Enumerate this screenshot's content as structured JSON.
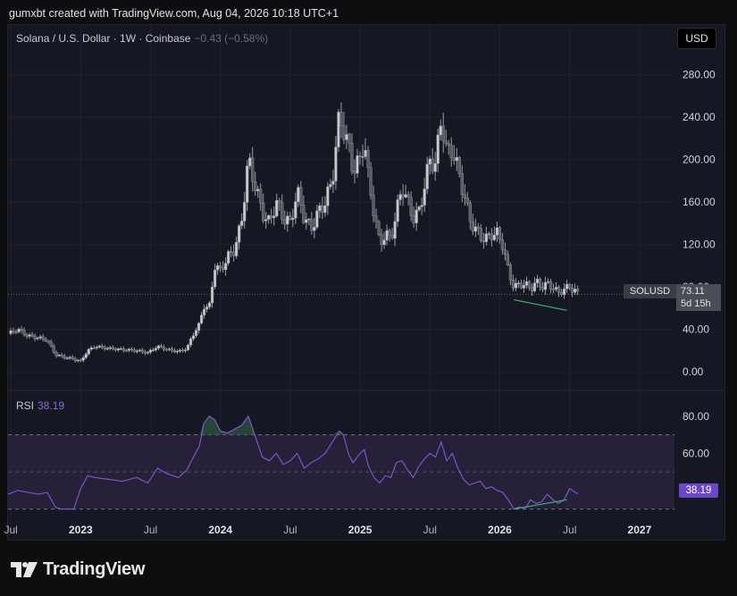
{
  "caption": "gumxbt created with TradingView.com, Aug 04, 2026 10:18 UTC+1",
  "symbol": {
    "title": "Solana / U.S. Dollar · 1W · Coinbase",
    "change": "−0.43 (−0.58%)",
    "currency": "USD",
    "ticker": "SOLUSD",
    "price": "73.11",
    "countdown": "5d 15h"
  },
  "brand": "TradingView",
  "colors": {
    "candle": "#c8c8c8",
    "candle_dark": "#5a5d66",
    "rsi_line": "#7c5bd6",
    "rsi_band": "#2a2340",
    "divergence": "#3fb37a"
  },
  "chart_data": [
    {
      "type": "candlestick",
      "title": "Solana / U.S. Dollar · 1W · Coinbase",
      "ylim": [
        -10,
        300
      ],
      "yticks": [
        "0.00",
        "40.00",
        "80.00",
        "120.00",
        "160.00",
        "200.00",
        "240.00",
        "280.00"
      ],
      "ytick_values": [
        0,
        40,
        80,
        120,
        160,
        200,
        240,
        280
      ],
      "xticks": [
        "Jul",
        "2023",
        "Jul",
        "2024",
        "Jul",
        "2025",
        "Jul",
        "2026",
        "Jul",
        "2027"
      ],
      "xtick_values": [
        2022.5,
        2023.0,
        2023.5,
        2024.0,
        2024.5,
        2025.0,
        2025.5,
        2026.0,
        2026.5,
        2027.0
      ],
      "x_range": [
        2022.48,
        2027.25
      ],
      "last_price": 73.11,
      "close_path": [
        [
          2022.48,
          36
        ],
        [
          2022.55,
          40
        ],
        [
          2022.62,
          34
        ],
        [
          2022.7,
          32
        ],
        [
          2022.76,
          30
        ],
        [
          2022.82,
          16
        ],
        [
          2022.88,
          14
        ],
        [
          2022.95,
          12
        ],
        [
          2023.0,
          10
        ],
        [
          2023.05,
          20
        ],
        [
          2023.1,
          24
        ],
        [
          2023.2,
          22
        ],
        [
          2023.3,
          21
        ],
        [
          2023.4,
          20
        ],
        [
          2023.48,
          18
        ],
        [
          2023.55,
          24
        ],
        [
          2023.62,
          21
        ],
        [
          2023.7,
          19
        ],
        [
          2023.76,
          22
        ],
        [
          2023.8,
          34
        ],
        [
          2023.85,
          45
        ],
        [
          2023.88,
          62
        ],
        [
          2023.92,
          60
        ],
        [
          2023.96,
          100
        ],
        [
          2024.0,
          95
        ],
        [
          2024.05,
          108
        ],
        [
          2024.1,
          115
        ],
        [
          2024.15,
          140
        ],
        [
          2024.2,
          200
        ],
        [
          2024.25,
          175
        ],
        [
          2024.3,
          150
        ],
        [
          2024.35,
          140
        ],
        [
          2024.4,
          160
        ],
        [
          2024.45,
          145
        ],
        [
          2024.5,
          140
        ],
        [
          2024.55,
          170
        ],
        [
          2024.6,
          145
        ],
        [
          2024.65,
          135
        ],
        [
          2024.7,
          150
        ],
        [
          2024.75,
          160
        ],
        [
          2024.8,
          180
        ],
        [
          2024.85,
          240
        ],
        [
          2024.88,
          230
        ],
        [
          2024.92,
          210
        ],
        [
          2024.95,
          190
        ],
        [
          2025.0,
          200
        ],
        [
          2025.03,
          220
        ],
        [
          2025.06,
          180
        ],
        [
          2025.1,
          150
        ],
        [
          2025.14,
          120
        ],
        [
          2025.18,
          130
        ],
        [
          2025.22,
          125
        ],
        [
          2025.26,
          150
        ],
        [
          2025.3,
          175
        ],
        [
          2025.34,
          160
        ],
        [
          2025.38,
          145
        ],
        [
          2025.42,
          150
        ],
        [
          2025.46,
          175
        ],
        [
          2025.5,
          200
        ],
        [
          2025.54,
          195
        ],
        [
          2025.58,
          240
        ],
        [
          2025.62,
          205
        ],
        [
          2025.66,
          210
        ],
        [
          2025.7,
          190
        ],
        [
          2025.74,
          170
        ],
        [
          2025.78,
          145
        ],
        [
          2025.82,
          135
        ],
        [
          2025.86,
          128
        ],
        [
          2025.9,
          125
        ],
        [
          2025.94,
          130
        ],
        [
          2025.98,
          130
        ],
        [
          2026.02,
          120
        ],
        [
          2026.06,
          95
        ],
        [
          2026.1,
          80
        ],
        [
          2026.14,
          82
        ],
        [
          2026.18,
          83
        ],
        [
          2026.22,
          78
        ],
        [
          2026.26,
          85
        ],
        [
          2026.3,
          80
        ],
        [
          2026.34,
          83
        ],
        [
          2026.38,
          80
        ],
        [
          2026.42,
          74
        ],
        [
          2026.46,
          78
        ],
        [
          2026.5,
          80
        ],
        [
          2026.54,
          76
        ],
        [
          2026.56,
          73.11
        ]
      ],
      "divergence_line": [
        [
          2026.1,
          68
        ],
        [
          2026.48,
          58
        ]
      ]
    },
    {
      "type": "line",
      "title": "RSI",
      "last_value": "38.19",
      "ylim": [
        26,
        90
      ],
      "yticks": [
        "60.00",
        "80.00"
      ],
      "ytick_values": [
        60,
        80
      ],
      "bands": [
        70,
        50,
        30
      ],
      "series": [
        {
          "name": "RSI",
          "x": [
            2022.48,
            2022.55,
            2022.62,
            2022.7,
            2022.76,
            2022.82,
            2022.86,
            2022.9,
            2022.95,
            2023.0,
            2023.05,
            2023.1,
            2023.2,
            2023.3,
            2023.4,
            2023.48,
            2023.55,
            2023.62,
            2023.7,
            2023.76,
            2023.8,
            2023.85,
            2023.88,
            2023.92,
            2023.96,
            2024.0,
            2024.05,
            2024.1,
            2024.15,
            2024.2,
            2024.25,
            2024.3,
            2024.35,
            2024.4,
            2024.45,
            2024.5,
            2024.55,
            2024.6,
            2024.65,
            2024.7,
            2024.75,
            2024.8,
            2024.85,
            2024.88,
            2024.92,
            2024.95,
            2025.0,
            2025.03,
            2025.06,
            2025.1,
            2025.14,
            2025.18,
            2025.22,
            2025.26,
            2025.3,
            2025.34,
            2025.38,
            2025.42,
            2025.46,
            2025.5,
            2025.54,
            2025.58,
            2025.62,
            2025.66,
            2025.7,
            2025.74,
            2025.78,
            2025.82,
            2025.86,
            2025.9,
            2025.94,
            2025.98,
            2026.02,
            2026.06,
            2026.1,
            2026.14,
            2026.18,
            2026.22,
            2026.26,
            2026.3,
            2026.34,
            2026.38,
            2026.42,
            2026.46,
            2026.5,
            2026.54,
            2026.56
          ],
          "values": [
            38,
            40,
            39,
            38,
            39,
            31,
            30,
            30,
            30,
            41,
            48,
            47,
            46,
            45,
            47,
            44,
            52,
            49,
            47,
            51,
            57,
            64,
            76,
            80,
            78,
            72,
            71,
            73,
            75,
            80,
            69,
            58,
            56,
            60,
            54,
            56,
            60,
            52,
            55,
            57,
            60,
            66,
            72,
            70,
            59,
            55,
            60,
            62,
            53,
            47,
            44,
            48,
            47,
            55,
            56,
            51,
            47,
            53,
            57,
            60,
            58,
            66,
            56,
            60,
            52,
            46,
            43,
            44,
            45,
            41,
            42,
            40,
            39,
            35,
            30,
            31,
            30,
            35,
            33,
            34,
            38,
            35,
            33,
            35,
            41,
            39,
            38.19
          ]
        }
      ],
      "divergence_line": [
        [
          2026.1,
          30
        ],
        [
          2026.48,
          35
        ]
      ]
    }
  ]
}
